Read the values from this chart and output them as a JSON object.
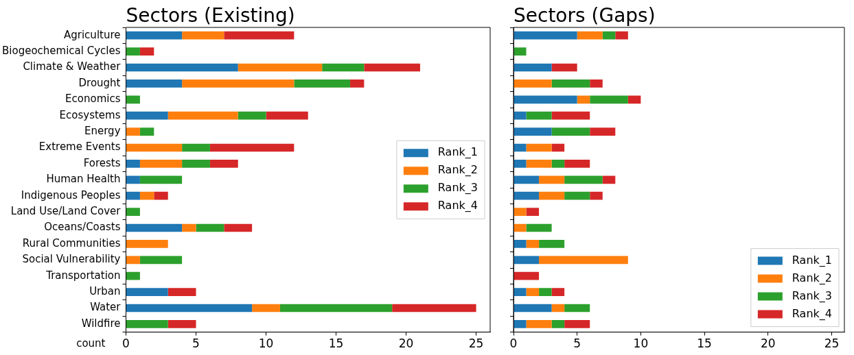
{
  "chart_data": [
    {
      "type": "bar",
      "orientation": "horizontal",
      "stacked": true,
      "title": "Sectors (Existing)",
      "xlabel": "count",
      "categories": [
        "Agriculture",
        "Biogeochemical Cycles",
        "Climate & Weather",
        "Drought",
        "Economics",
        "Ecosystems",
        "Energy",
        "Extreme Events",
        "Forests",
        "Human Health",
        "Indigenous Peoples",
        "Land Use/Land Cover",
        "Oceans/Coasts",
        "Rural Communities",
        "Social Vulnerability",
        "Transportation",
        "Urban",
        "Water",
        "Wildfire"
      ],
      "series": [
        {
          "name": "Rank_1",
          "color": "#1f77b4",
          "values": [
            4,
            0,
            8,
            4,
            0,
            3,
            0,
            0,
            1,
            1,
            1,
            0,
            4,
            0,
            0,
            0,
            3,
            9,
            0
          ]
        },
        {
          "name": "Rank_2",
          "color": "#ff7f0e",
          "values": [
            3,
            0,
            6,
            8,
            0,
            5,
            1,
            4,
            3,
            0,
            1,
            0,
            1,
            3,
            1,
            0,
            0,
            2,
            0
          ]
        },
        {
          "name": "Rank_3",
          "color": "#2ca02c",
          "values": [
            0,
            1,
            3,
            4,
            1,
            2,
            1,
            2,
            2,
            3,
            0,
            1,
            2,
            0,
            3,
            1,
            0,
            8,
            3
          ]
        },
        {
          "name": "Rank_4",
          "color": "#d62728",
          "values": [
            5,
            1,
            4,
            1,
            0,
            3,
            0,
            6,
            2,
            0,
            1,
            0,
            2,
            0,
            0,
            0,
            2,
            6,
            2
          ]
        }
      ],
      "xlim": [
        0,
        26
      ],
      "xticks": [
        0,
        5,
        10,
        15,
        20,
        25
      ],
      "grid": false,
      "legend": "right"
    },
    {
      "type": "bar",
      "orientation": "horizontal",
      "stacked": true,
      "title": "Sectors (Gaps)",
      "categories": [
        null,
        null,
        null,
        null,
        null,
        null,
        null,
        null,
        null,
        null,
        null,
        null,
        null,
        null,
        null,
        null,
        null,
        null,
        null
      ],
      "series": [
        {
          "name": "Rank_1",
          "color": "#1f77b4",
          "values": [
            5,
            0,
            3,
            0,
            5,
            1,
            3,
            1,
            1,
            2,
            2,
            0,
            0,
            1,
            2,
            0,
            1,
            3,
            1
          ]
        },
        {
          "name": "Rank_2",
          "color": "#ff7f0e",
          "values": [
            2,
            0,
            0,
            3,
            1,
            0,
            0,
            2,
            2,
            2,
            2,
            1,
            1,
            1,
            7,
            0,
            1,
            1,
            2
          ]
        },
        {
          "name": "Rank_3",
          "color": "#2ca02c",
          "values": [
            1,
            1,
            0,
            3,
            3,
            2,
            3,
            0,
            1,
            3,
            2,
            0,
            2,
            2,
            0,
            0,
            1,
            2,
            1
          ]
        },
        {
          "name": "Rank_4",
          "color": "#d62728",
          "values": [
            1,
            0,
            2,
            1,
            1,
            3,
            2,
            1,
            2,
            1,
            1,
            1,
            0,
            0,
            0,
            2,
            1,
            0,
            2
          ]
        }
      ],
      "xlim": [
        0,
        26
      ],
      "xticks": [
        0,
        5,
        10,
        15,
        20,
        25
      ],
      "grid": false,
      "legend": "bottom right",
      "tick_labels": "x"
    }
  ]
}
